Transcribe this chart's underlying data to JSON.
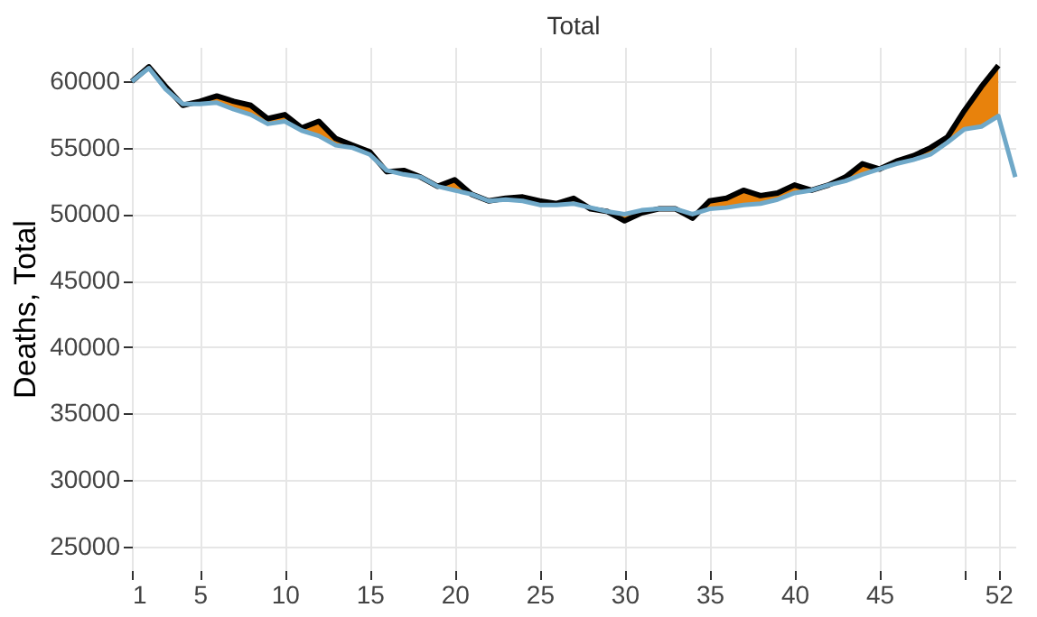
{
  "chart_data": {
    "type": "line",
    "title": "Total",
    "ylabel": "Deaths, Total",
    "x": [
      1,
      2,
      3,
      4,
      5,
      6,
      7,
      8,
      9,
      10,
      11,
      12,
      13,
      14,
      15,
      16,
      17,
      18,
      19,
      20,
      21,
      22,
      23,
      24,
      25,
      26,
      27,
      28,
      29,
      30,
      31,
      32,
      33,
      34,
      35,
      36,
      37,
      38,
      39,
      40,
      41,
      42,
      43,
      44,
      45,
      46,
      47,
      48,
      49,
      50,
      51,
      52,
      53
    ],
    "series": [
      {
        "color": "#000000",
        "x": [
          1,
          2,
          3,
          4,
          5,
          6,
          7,
          8,
          9,
          10,
          11,
          12,
          13,
          14,
          15,
          16,
          17,
          18,
          19,
          20,
          21,
          22,
          23,
          24,
          25,
          26,
          27,
          28,
          29,
          30,
          31,
          32,
          33,
          34,
          35,
          36,
          37,
          38,
          39,
          40,
          41,
          42,
          43,
          44,
          45,
          46,
          47,
          48,
          49,
          50,
          51,
          52
        ],
        "values": [
          60000,
          61100,
          59600,
          58200,
          58500,
          58900,
          58500,
          58200,
          57200,
          57500,
          56500,
          57000,
          55700,
          55200,
          54700,
          53200,
          53300,
          52800,
          52100,
          52600,
          51500,
          51000,
          51200,
          51300,
          51000,
          50800,
          51200,
          50400,
          50200,
          49500,
          50100,
          50400,
          50400,
          49700,
          51000,
          51200,
          51800,
          51400,
          51600,
          52200,
          51800,
          52200,
          52800,
          53800,
          53400,
          54000,
          54400,
          55000,
          55800,
          57800,
          59600,
          61200
        ],
        "lower": [
          60000,
          61000,
          59400,
          58300,
          58300,
          58400,
          57900,
          57500,
          56800,
          57000,
          56300,
          55900,
          55200,
          55000,
          54500,
          53300,
          53000,
          52800,
          52100,
          51800,
          51500,
          51000,
          51100,
          51000,
          50700,
          50700,
          50800,
          50500,
          50200,
          50000,
          50300,
          50400,
          50400,
          50000,
          50400,
          50500,
          50700,
          50800,
          51100,
          51600,
          51800,
          52200,
          52500,
          53000,
          53400,
          53800,
          54100,
          54500,
          55400,
          56400,
          56600,
          57400
        ],
        "upper": [
          60000,
          61100,
          59600,
          58200,
          58500,
          58900,
          58500,
          58200,
          57200,
          57500,
          56500,
          57000,
          55700,
          55200,
          54700,
          53200,
          53300,
          52800,
          52100,
          52600,
          51500,
          51000,
          51200,
          51300,
          51000,
          50800,
          51200,
          50400,
          50200,
          49500,
          50100,
          50400,
          50400,
          49700,
          51000,
          51200,
          51800,
          51400,
          51600,
          52200,
          51800,
          52200,
          52800,
          53800,
          53400,
          54000,
          54400,
          55000,
          55800,
          57800,
          59600,
          61200
        ]
      },
      {
        "color": "#6fa8c8",
        "values": [
          60000,
          61000,
          59400,
          58300,
          58300,
          58400,
          57900,
          57500,
          56800,
          57000,
          56300,
          55900,
          55200,
          55000,
          54500,
          53300,
          53000,
          52800,
          52100,
          51800,
          51500,
          51000,
          51100,
          51000,
          50700,
          50700,
          50800,
          50500,
          50200,
          50000,
          50300,
          50400,
          50400,
          50000,
          50400,
          50500,
          50700,
          50800,
          51100,
          51600,
          51800,
          52200,
          52500,
          53000,
          53400,
          53800,
          54100,
          54500,
          55400,
          56400,
          56600,
          57400,
          52800
        ]
      }
    ],
    "xlim": [
      1,
      53
    ],
    "xticks": [
      1,
      5,
      10,
      15,
      20,
      25,
      30,
      35,
      40,
      45,
      {
        "value": 50,
        "label": null
      },
      52
    ],
    "ylim": [
      23200,
      62600
    ],
    "yticks": [
      25000,
      30000,
      35000,
      40000,
      45000,
      50000,
      55000,
      60000
    ],
    "grid": true
  }
}
